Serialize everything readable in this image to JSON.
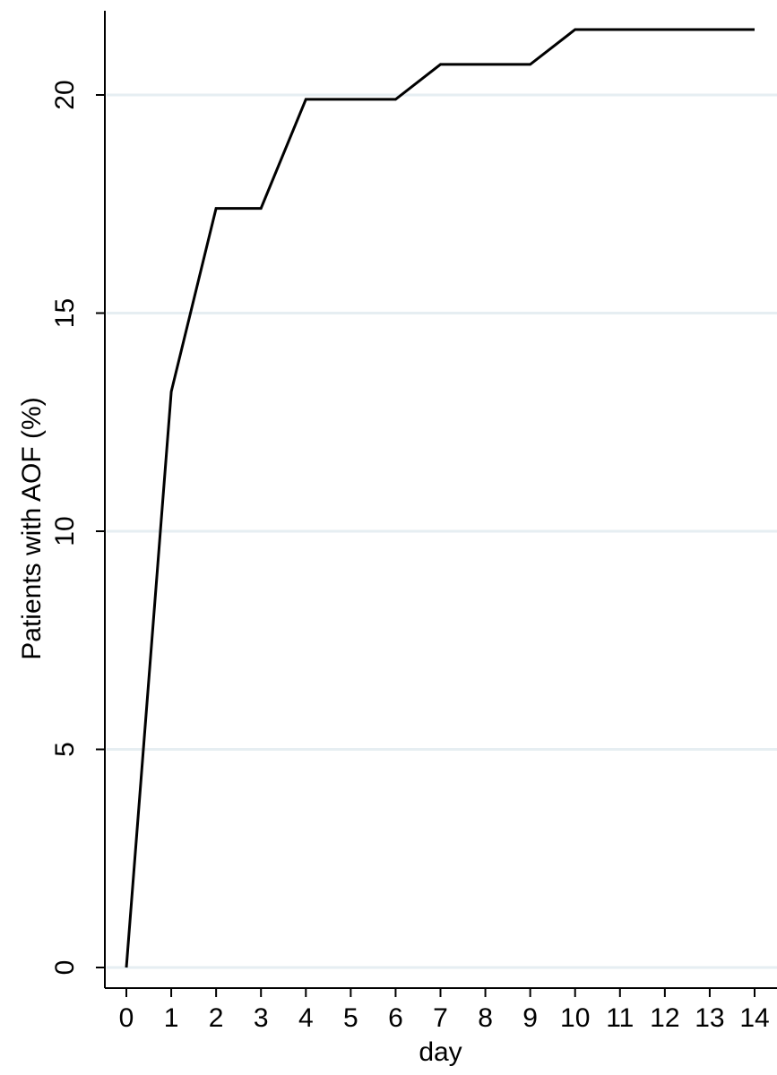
{
  "chart_data": {
    "type": "line",
    "title": "",
    "xlabel": "day",
    "ylabel": "Patients with AOF (%)",
    "xlim": [
      0,
      14
    ],
    "ylim": [
      0,
      22
    ],
    "x_ticks": [
      0,
      1,
      2,
      3,
      4,
      5,
      6,
      7,
      8,
      9,
      10,
      11,
      12,
      13,
      14
    ],
    "y_ticks": [
      0,
      5,
      10,
      15,
      20
    ],
    "grid": "horizontal",
    "legend": "none",
    "series": [
      {
        "color": "#000000",
        "points": [
          {
            "x": 0,
            "y": 0
          },
          {
            "x": 1,
            "y": 13.2
          },
          {
            "x": 2,
            "y": 17.4
          },
          {
            "x": 3,
            "y": 17.4
          },
          {
            "x": 4,
            "y": 19.9
          },
          {
            "x": 5,
            "y": 19.9
          },
          {
            "x": 6,
            "y": 19.9
          },
          {
            "x": 7,
            "y": 20.7
          },
          {
            "x": 8,
            "y": 20.7
          },
          {
            "x": 9,
            "y": 20.7
          },
          {
            "x": 10,
            "y": 21.5
          },
          {
            "x": 11,
            "y": 21.5
          },
          {
            "x": 12,
            "y": 21.5
          },
          {
            "x": 13,
            "y": 21.5
          },
          {
            "x": 14,
            "y": 21.5
          }
        ]
      }
    ],
    "colors": {
      "line": "#000000",
      "grid": "#e6eef2",
      "axis": "#000000",
      "background": "#ffffff"
    }
  }
}
